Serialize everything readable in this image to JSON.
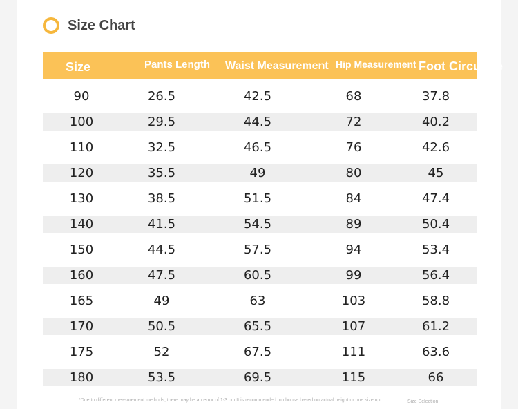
{
  "title": "Size Chart",
  "headers": [
    "Size",
    "Pants Length",
    "Waist Measurement",
    "Hip Measurement",
    "Foot Circumfe"
  ],
  "rows": [
    [
      "90",
      "26.5",
      "42.5",
      "68",
      "37.8"
    ],
    [
      "100",
      "29.5",
      "44.5",
      "72",
      "40.2"
    ],
    [
      "110",
      "32.5",
      "46.5",
      "76",
      "42.6"
    ],
    [
      "120",
      "35.5",
      "49",
      "80",
      "45"
    ],
    [
      "130",
      "38.5",
      "51.5",
      "84",
      "47.4"
    ],
    [
      "140",
      "41.5",
      "54.5",
      "89",
      "50.4"
    ],
    [
      "150",
      "44.5",
      "57.5",
      "94",
      "53.4"
    ],
    [
      "160",
      "47.5",
      "60.5",
      "99",
      "56.4"
    ],
    [
      "165",
      "49",
      "63",
      "103",
      "58.8"
    ],
    [
      "170",
      "50.5",
      "65.5",
      "107",
      "61.2"
    ],
    [
      "175",
      "52",
      "67.5",
      "111",
      "63.6"
    ],
    [
      "180",
      "53.5",
      "69.5",
      "115",
      "66"
    ]
  ],
  "footnote": "*Due to different measurement methods, there may be an error of 1-3 cm It is recommended to choose based on actual height or one size up.",
  "footnote_right": "Size Selection",
  "colors": {
    "accent": "#fbc257",
    "ring": "#f6b73c",
    "stripe": "#eeeeee"
  }
}
